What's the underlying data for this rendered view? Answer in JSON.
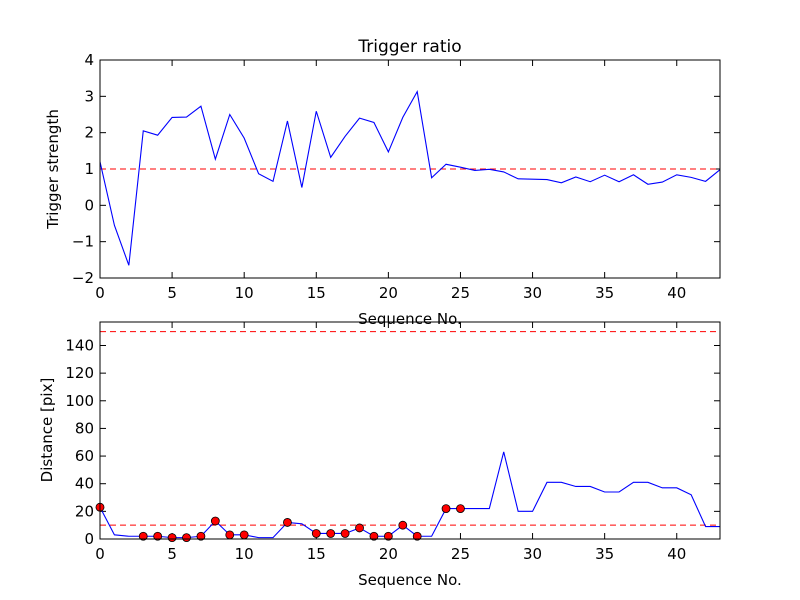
{
  "chart_data": [
    {
      "type": "line",
      "title": "Trigger ratio",
      "xlabel": "Sequence No.",
      "ylabel": "Trigger strength",
      "xlim": [
        0,
        43
      ],
      "ylim": [
        -2,
        4
      ],
      "xticks": [
        0,
        5,
        10,
        15,
        20,
        25,
        30,
        35,
        40
      ],
      "yticks": [
        -2,
        -1,
        0,
        1,
        2,
        3,
        4
      ],
      "ytick_labels": [
        "−2",
        "−1",
        "0",
        "1",
        "2",
        "3",
        "4"
      ],
      "grid": false,
      "series": [
        {
          "color": "#0000ff",
          "x": [
            0,
            1,
            2,
            3,
            4,
            5,
            6,
            7,
            8,
            9,
            10,
            11,
            12,
            13,
            14,
            15,
            16,
            17,
            18,
            19,
            20,
            21,
            22,
            23,
            24,
            25,
            26,
            27,
            28,
            29,
            30,
            31,
            32,
            33,
            34,
            35,
            36,
            37,
            38,
            39,
            40,
            41,
            42,
            43
          ],
          "y": [
            1.2,
            -0.55,
            -1.65,
            2.05,
            1.93,
            2.42,
            2.43,
            2.73,
            1.27,
            2.5,
            1.85,
            0.87,
            0.66,
            2.32,
            0.49,
            2.59,
            1.32,
            1.9,
            2.4,
            2.28,
            1.47,
            2.42,
            3.13,
            0.76,
            1.13,
            1.05,
            0.96,
            0.99,
            0.92,
            0.73,
            0.72,
            0.71,
            0.62,
            0.78,
            0.65,
            0.83,
            0.65,
            0.84,
            0.58,
            0.64,
            0.84,
            0.77,
            0.66,
            0.98
          ]
        }
      ],
      "hlines": [
        {
          "y": 1,
          "color": "#ff0000",
          "style": "dashed"
        }
      ]
    },
    {
      "type": "line",
      "title": "",
      "xlabel": "Sequence No.",
      "ylabel": "Distance [pix]",
      "xlim": [
        0,
        43
      ],
      "ylim": [
        0,
        157
      ],
      "xticks": [
        0,
        5,
        10,
        15,
        20,
        25,
        30,
        35,
        40
      ],
      "yticks": [
        0,
        20,
        40,
        60,
        80,
        100,
        120,
        140
      ],
      "grid": false,
      "series": [
        {
          "color": "#0000ff",
          "x": [
            0,
            1,
            2,
            3,
            4,
            5,
            6,
            7,
            8,
            9,
            10,
            11,
            12,
            13,
            14,
            15,
            16,
            17,
            18,
            19,
            20,
            21,
            22,
            23,
            24,
            25,
            26,
            27,
            28,
            29,
            30,
            31,
            32,
            33,
            34,
            35,
            36,
            37,
            38,
            39,
            40,
            41,
            42,
            43
          ],
          "y": [
            23,
            3,
            2,
            2,
            2,
            1,
            1,
            2,
            13,
            3,
            3,
            1,
            1,
            12,
            11,
            4,
            4,
            4,
            8,
            2,
            2,
            10,
            2,
            2,
            22,
            22,
            22,
            22,
            63,
            20,
            20,
            41,
            41,
            38,
            38,
            34,
            34,
            41,
            41,
            37,
            37,
            32,
            9,
            9
          ]
        },
        {
          "color": "#ff0000",
          "marker": "circle",
          "x": [
            0,
            3,
            4,
            5,
            6,
            7,
            8,
            9,
            10,
            13,
            15,
            16,
            17,
            18,
            19,
            20,
            21,
            22,
            24,
            25
          ],
          "y": [
            23,
            2,
            2,
            1,
            1,
            2,
            13,
            3,
            3,
            12,
            4,
            4,
            4,
            8,
            2,
            2,
            10,
            2,
            22,
            22
          ]
        }
      ],
      "hlines": [
        {
          "y": 150,
          "color": "#ff0000",
          "style": "dashed"
        },
        {
          "y": 10,
          "color": "#ff0000",
          "style": "dashed"
        }
      ]
    }
  ]
}
